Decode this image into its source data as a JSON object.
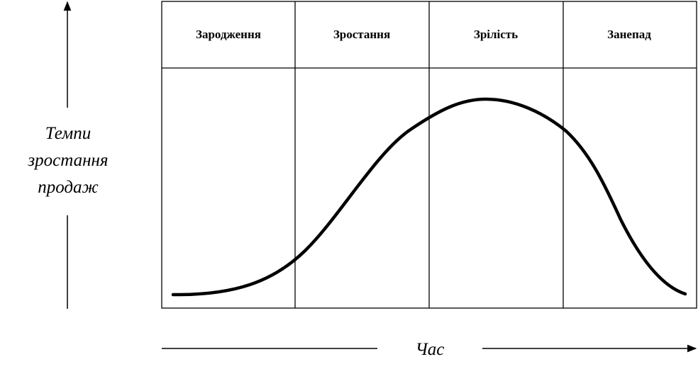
{
  "stages": [
    {
      "label": "Зародження"
    },
    {
      "label": "Зростання"
    },
    {
      "label": "Зрілість"
    },
    {
      "label": "Занепад"
    }
  ],
  "y_axis": {
    "label_lines": [
      "Темпи",
      "зростання",
      "продаж"
    ]
  },
  "x_axis": {
    "label": "Час"
  }
}
